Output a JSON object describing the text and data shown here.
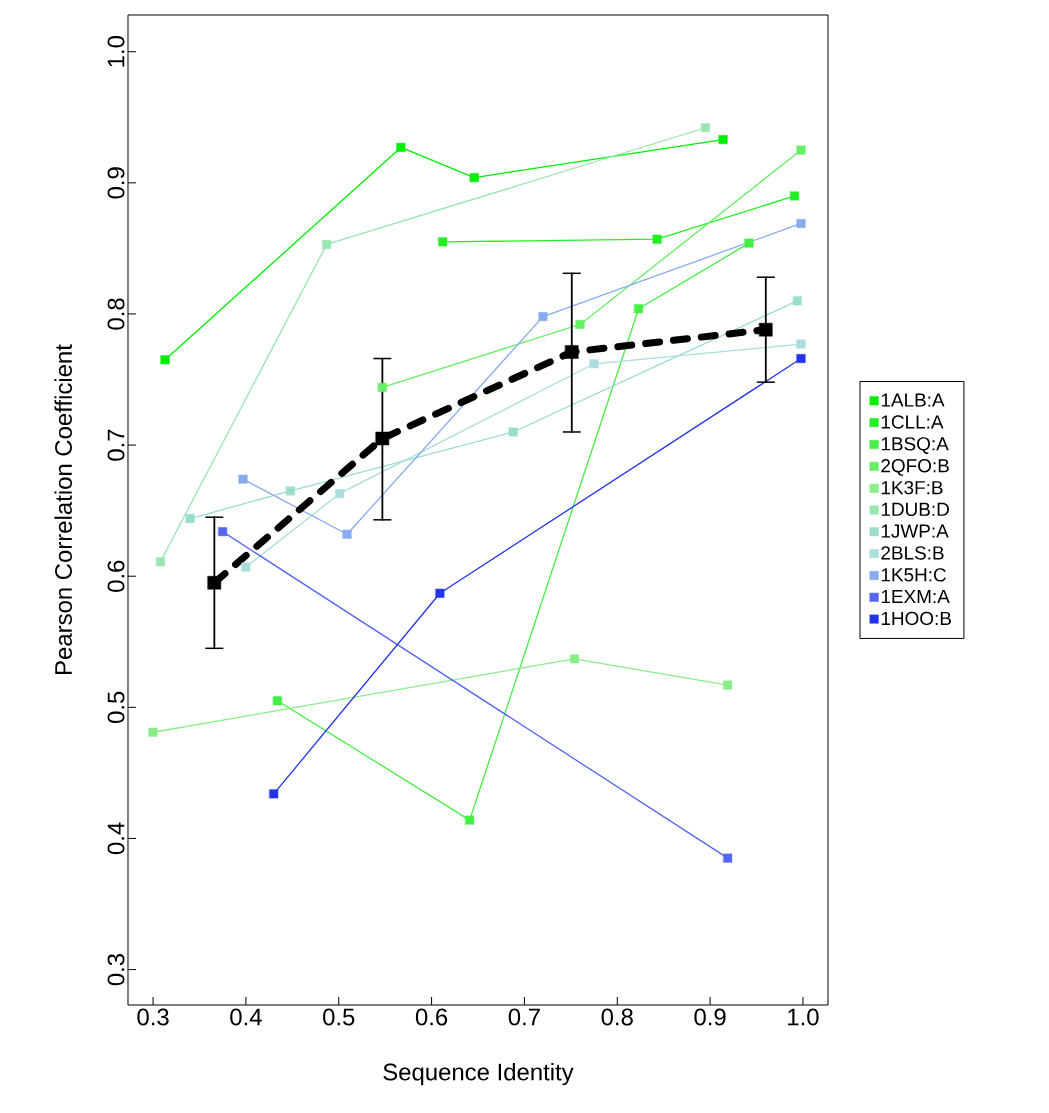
{
  "chart_data": {
    "type": "line",
    "xlabel": "Sequence Identity",
    "ylabel": "Pearson Correlation Coefficient",
    "xlim": [
      0.273,
      1.027
    ],
    "ylim": [
      0.273,
      1.028
    ],
    "xticks": [
      0.3,
      0.4,
      0.5,
      0.6,
      0.7,
      0.8,
      0.9,
      {
        "value": 1.0,
        "label": "1.0"
      }
    ],
    "yticks": [
      0.3,
      0.4,
      0.5,
      0.6,
      0.7,
      0.8,
      0.9,
      {
        "value": 1.0,
        "label": "1.0"
      }
    ],
    "grid": false,
    "legend": "right",
    "marker": "square",
    "line_style": "solid",
    "series": [
      {
        "name": "1ALB:A",
        "color": "#00ee00",
        "x": [
          0.313,
          0.567,
          0.646,
          0.914
        ],
        "values": [
          0.765,
          0.927,
          0.904,
          0.933
        ]
      },
      {
        "name": "1CLL:A",
        "color": "#22ee22",
        "x": [
          0.612,
          0.843,
          0.991
        ],
        "values": [
          0.855,
          0.857,
          0.89
        ]
      },
      {
        "name": "1BSQ:A",
        "color": "#44ee44",
        "x": [
          0.434,
          0.641,
          0.823,
          0.942
        ],
        "values": [
          0.505,
          0.414,
          0.804,
          0.854
        ]
      },
      {
        "name": "2QFO:B",
        "color": "#66ee66",
        "x": [
          0.547,
          0.76,
          0.998
        ],
        "values": [
          0.744,
          0.792,
          0.925
        ]
      },
      {
        "name": "1K3F:B",
        "color": "#88ee88",
        "x": [
          0.3,
          0.754,
          0.919
        ],
        "values": [
          0.481,
          0.537,
          0.517
        ]
      },
      {
        "name": "1DUB:D",
        "color": "#99e6b3",
        "x": [
          0.308,
          0.487,
          0.895
        ],
        "values": [
          0.611,
          0.853,
          0.942
        ]
      },
      {
        "name": "1JWP:A",
        "color": "#99ddcc",
        "x": [
          0.34,
          0.448,
          0.688,
          0.994
        ],
        "values": [
          0.644,
          0.665,
          0.71,
          0.81
        ]
      },
      {
        "name": "2BLS:B",
        "color": "#aadddd",
        "x": [
          0.4,
          0.501,
          0.775,
          0.998
        ],
        "values": [
          0.607,
          0.663,
          0.762,
          0.777
        ]
      },
      {
        "name": "1K5H:C",
        "color": "#88aaee",
        "x": [
          0.397,
          0.509,
          0.72,
          0.998
        ],
        "values": [
          0.674,
          0.632,
          0.798,
          0.869
        ]
      },
      {
        "name": "1EXM:A",
        "color": "#5566ee",
        "x": [
          0.375,
          0.919
        ],
        "values": [
          0.634,
          0.385
        ]
      },
      {
        "name": "1HOO:B",
        "color": "#2233ee",
        "x": [
          0.43,
          0.609,
          0.998
        ],
        "values": [
          0.434,
          0.587,
          0.766
        ]
      },
      {
        "color": "#000000",
        "line_style": "dashed",
        "x": [
          0.366,
          0.547,
          0.751,
          0.96
        ],
        "values": [
          0.595,
          0.705,
          0.771,
          0.788
        ],
        "errors": [
          [
            0.545,
            0.645
          ],
          [
            0.643,
            0.766
          ],
          [
            0.71,
            0.831
          ],
          [
            0.748,
            0.828
          ]
        ]
      }
    ]
  }
}
